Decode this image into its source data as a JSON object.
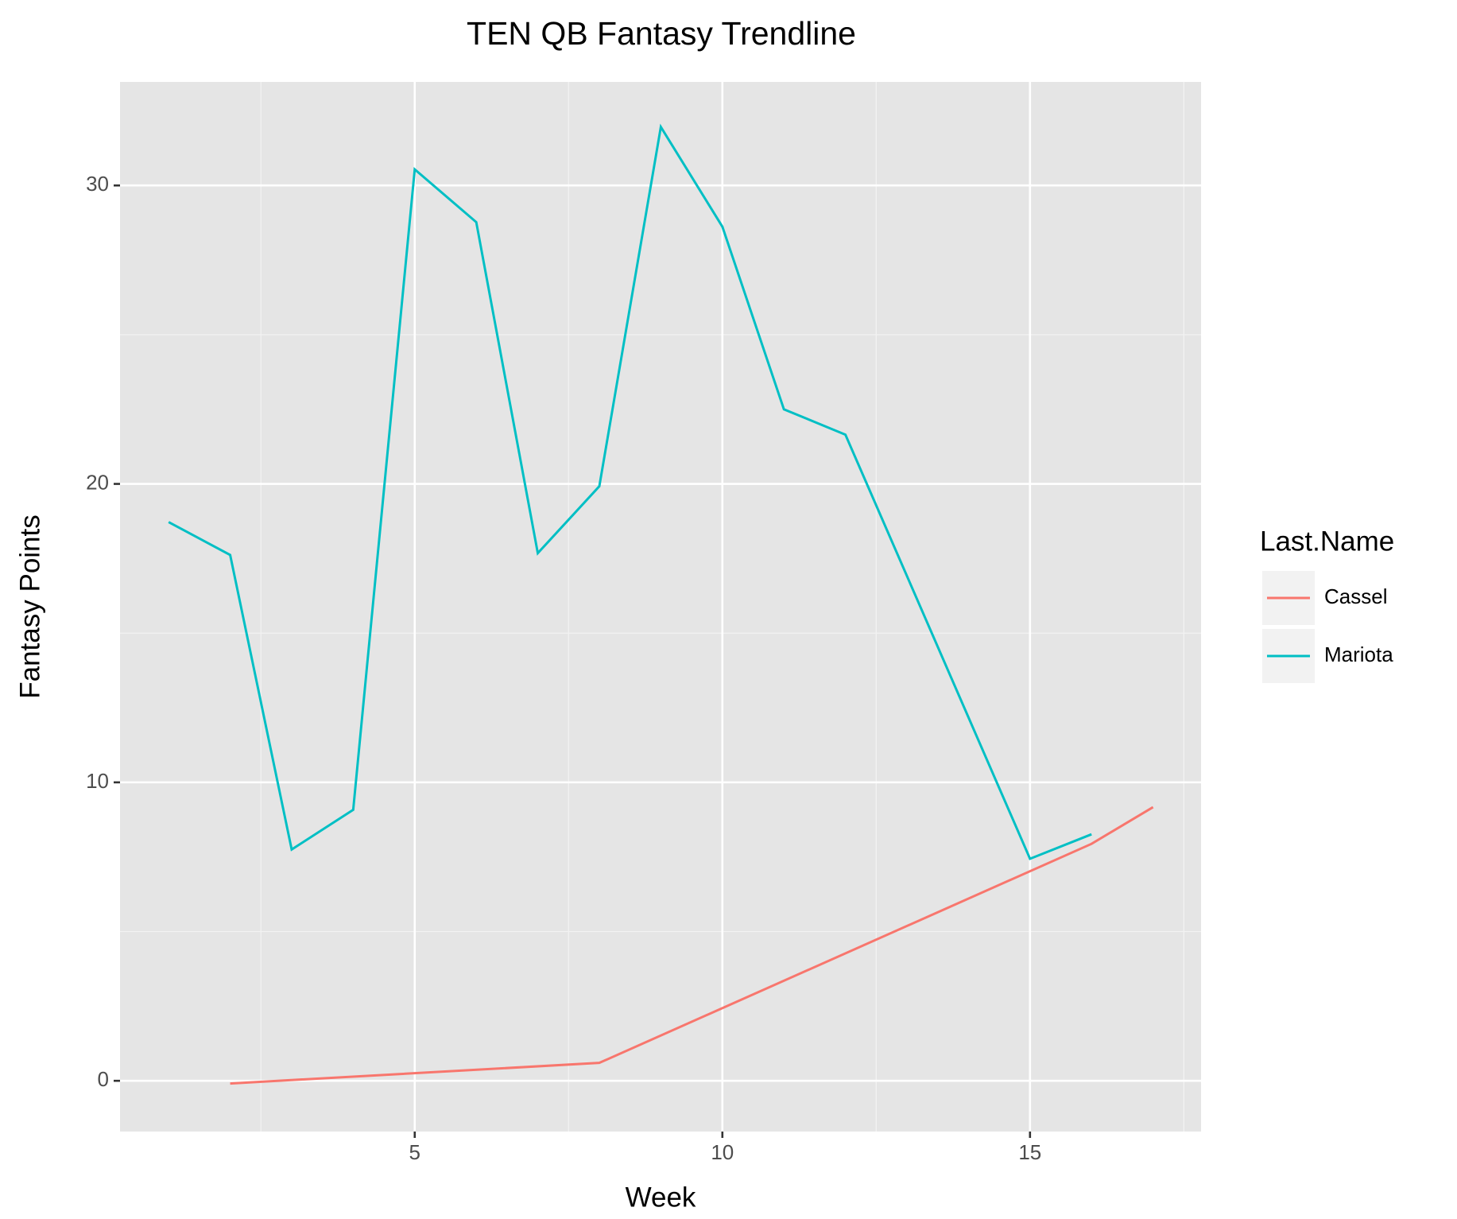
{
  "chart_data": {
    "type": "line",
    "title": "TEN QB Fantasy Trendline",
    "xlabel": "Week",
    "ylabel": "Fantasy Points",
    "legend_title": "Last.Name",
    "legend_position": "right",
    "grid": true,
    "xlim": [
      0.21,
      17.78
    ],
    "ylim": [
      -1.7,
      33.47
    ],
    "xticks": [
      5,
      10,
      15
    ],
    "yticks": [
      0,
      10,
      20,
      30
    ],
    "xminor": [
      2.5,
      7.5,
      12.5,
      17.5
    ],
    "yminor": [
      5,
      15,
      25
    ],
    "series": [
      {
        "name": "Cassel",
        "color": "#f8766d",
        "x": [
          2,
          8,
          16,
          17
        ],
        "values": [
          -0.09,
          0.6,
          7.94,
          9.17
        ]
      },
      {
        "name": "Mariota",
        "color": "#00bfc4",
        "x": [
          1,
          2,
          3,
          4,
          5,
          6,
          7,
          8,
          9,
          10,
          11,
          12,
          15,
          16
        ],
        "values": [
          18.72,
          17.62,
          7.75,
          9.08,
          30.54,
          28.77,
          17.68,
          19.92,
          31.96,
          28.62,
          22.5,
          21.65,
          7.44,
          8.26
        ]
      }
    ]
  }
}
